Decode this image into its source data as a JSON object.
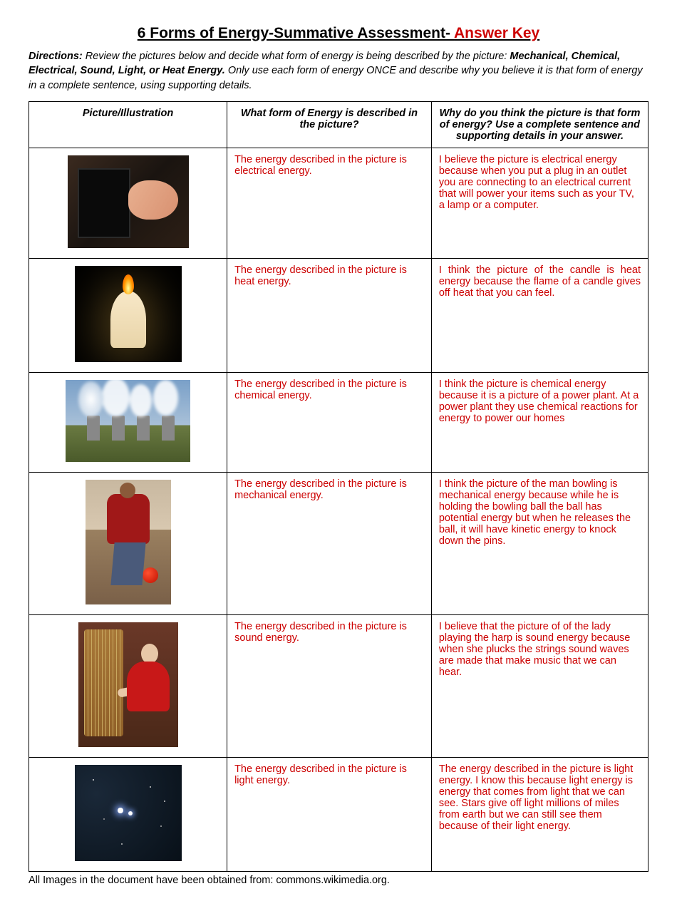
{
  "title_main": "6 Forms of Energy-Summative Assessment- ",
  "title_key": "Answer Key",
  "directions": {
    "label": "Directions: ",
    "part1": "Review the pictures below and decide what form of energy is being described by the picture: ",
    "bold": "Mechanical, Chemical, Electrical, Sound, Light, or Heat Energy.",
    "part2": " Only use each form of energy ONCE and describe why you believe it is that form of energy in a complete sentence, using supporting details."
  },
  "headers": {
    "col1": "Picture/Illustration",
    "col2": "What form of Energy is described in the picture?",
    "col3": "Why do you think the picture is that form of energy? Use a complete sentence and supporting details in your answer."
  },
  "rows": [
    {
      "form": "The energy described in the picture is electrical energy.",
      "why": "I believe the picture is electrical energy because when you put a plug in an outlet you are connecting to an electrical current that will power your items such as your TV, a lamp or a computer.",
      "justify": false
    },
    {
      "form": "The energy described in the picture is heat energy.",
      "why": "I think the picture of the candle is heat energy because the flame of a candle gives off heat that you can feel.",
      "justify": true
    },
    {
      "form": "The energy described in the picture is chemical energy.",
      "why": "I think the picture is chemical energy because it is a picture of a power plant. At a power plant they use chemical reactions for energy to power our homes",
      "justify": false
    },
    {
      "form": "The energy described in the picture is mechanical energy.",
      "why": "I think the picture of the man bowling is mechanical energy because while he is holding the bowling ball the ball has potential energy but when he releases the ball, it will have kinetic energy to knock down the pins.",
      "justify": false
    },
    {
      "form": "The energy described in the picture is sound energy.",
      "why": "I believe that the picture of of the lady playing the harp is sound energy because when she plucks the strings sound waves are made that make music that we can hear.",
      "justify": false
    },
    {
      "form": "The energy described in the picture is light energy.",
      "why": "The energy described in the picture is light energy. I know this because light energy is energy that comes from light that we can see. Stars give off light millions of miles from earth but we can still see them because of their light energy.",
      "justify": false
    }
  ],
  "footer": "All Images in the document have been obtained from: commons.wikimedia.org.",
  "text_color_answer": "#cc0000",
  "images": [
    {
      "name": "outlet-plug-image"
    },
    {
      "name": "candle-image"
    },
    {
      "name": "power-plant-image"
    },
    {
      "name": "bowling-image"
    },
    {
      "name": "harp-image"
    },
    {
      "name": "stars-image"
    }
  ]
}
